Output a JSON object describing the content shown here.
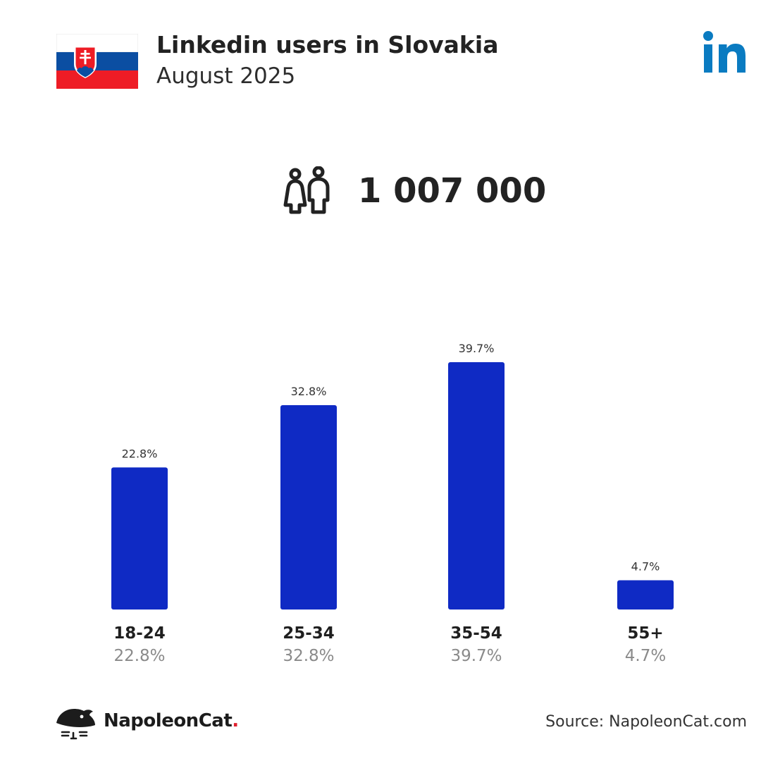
{
  "header": {
    "title": "Linkedin users in Slovakia",
    "subtitle": "August 2025"
  },
  "flag_icon": "slovakia-flag-icon",
  "platform_logo_text": "in",
  "total": {
    "icon": "people-icon",
    "value": "1 007 000"
  },
  "chart_data": {
    "type": "bar",
    "categories": [
      "18-24",
      "25-34",
      "35-54",
      "55+"
    ],
    "values": [
      22.8,
      32.8,
      39.7,
      4.7
    ],
    "value_labels": [
      "22.8%",
      "32.8%",
      "39.7%",
      "4.7%"
    ],
    "ylim": [
      0,
      39.7
    ],
    "grid": false,
    "bar_color": "#0f2ac4"
  },
  "footer": {
    "brand_name": "NapoleonCat",
    "brand_dot": ".",
    "source": "Source: NapoleonCat.com"
  },
  "colors": {
    "bar": "#0f2ac4",
    "linkedin_blue": "#0a7bc1",
    "brand_dot": "#e0212f",
    "flag_white": "#ffffff",
    "flag_blue": "#0b4ea2",
    "flag_red": "#ee1c25"
  }
}
